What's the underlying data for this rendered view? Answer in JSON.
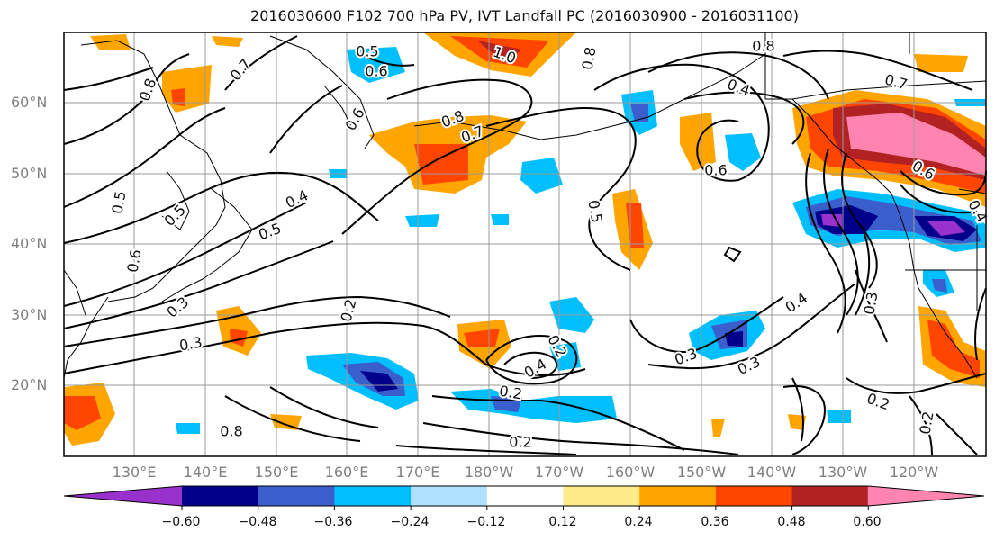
{
  "title": "2016030600 F102 700 hPa PV, IVT Landfall PC (2016030900 - 2016031100)",
  "map": {
    "lat_labels": [
      "60°N",
      "50°N",
      "40°N",
      "30°N",
      "20°N"
    ],
    "lon_labels": [
      "130°E",
      "140°E",
      "150°E",
      "160°E",
      "170°E",
      "180°W",
      "170°W",
      "160°W",
      "150°W",
      "140°W",
      "130°W",
      "120°W"
    ],
    "contour_labels": [
      "0.5",
      "0.6",
      "1.0",
      "0.8",
      "0.7",
      "0.8",
      "0.4",
      "0.7",
      "0.8",
      "0.7",
      "0.6",
      "0.6",
      "0.8",
      "0.5",
      "0.5",
      "0.4",
      "0.5",
      "0.5",
      "0.6",
      "0.3",
      "0.2",
      "0.3",
      "0.2",
      "0.4",
      "0.2",
      "0.3",
      "0.4",
      "0.3",
      "0.2",
      "0.2",
      "0.3",
      "0.2",
      "0.8",
      "0.6",
      "0.4"
    ]
  },
  "colorbar": {
    "ticks": [
      "−0.60",
      "−0.48",
      "−0.36",
      "−0.24",
      "−0.12",
      "0.12",
      "0.24",
      "0.36",
      "0.48",
      "0.60"
    ],
    "colors": [
      "#9932cc",
      "#00008b",
      "#3a5fcd",
      "#00bfff",
      "#b0e2ff",
      "#ffffff",
      "#ffea8a",
      "#ffa500",
      "#ff4500",
      "#b22222",
      "#ff85b0"
    ]
  }
}
